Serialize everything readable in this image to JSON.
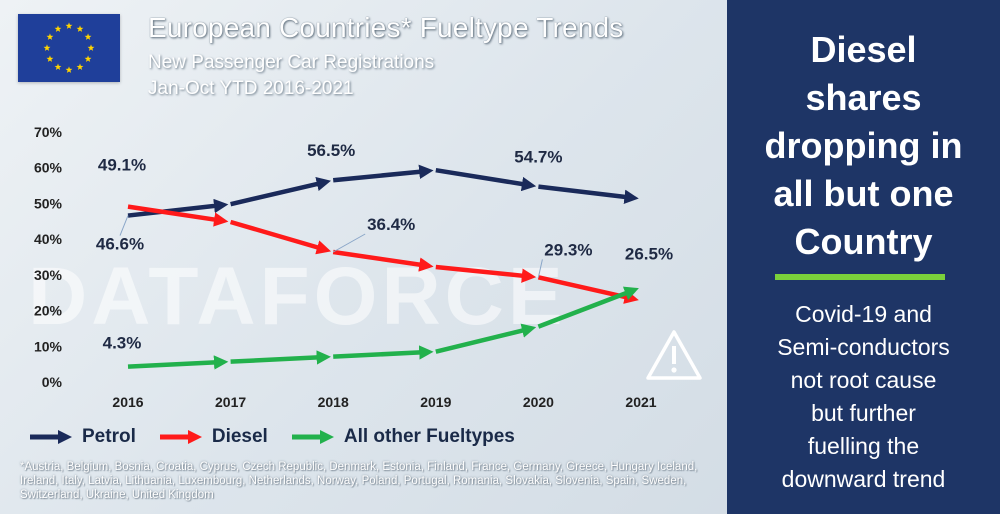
{
  "header": {
    "title": "European Countries* Fueltype Trends",
    "subtitle_line1": "New Passenger Car Registrations",
    "subtitle_line2": "Jan-Oct YTD 2016-2021"
  },
  "watermark": "DATAFORCE",
  "legend": {
    "items": [
      {
        "label": "Petrol",
        "color": "#1a2a5a"
      },
      {
        "label": "Diesel",
        "color": "#ff1a1a"
      },
      {
        "label": "All other Fueltypes",
        "color": "#22b14c"
      }
    ]
  },
  "footnote": "*Austria, Belgium, Bosnia, Croatia, Cyprus, Czech Republic, Denmark, Estonia,  Finland, France, Germany, Greece, Hungary Iceland, Ireland, Italy, Latvia, Lithuania, Luxembourg, Netherlands, Norway, Poland, Portugal, Romania, Slovakia, Slovenia, Spain, Sweden, Switzerland, Ukraine, United Kingdom",
  "panel": {
    "headline": [
      "Diesel",
      "shares",
      "dropping in",
      "all but one",
      "Country"
    ],
    "body": [
      "Covid-19 and",
      "Semi-conductors",
      "not root cause",
      "but further",
      "fuelling the",
      "downward trend"
    ],
    "accent_color": "#7bd13b",
    "background_color": "#1e3566"
  },
  "icons": {
    "flag": "eu-flag-icon",
    "warning": "warning-triangle-icon"
  },
  "chart_data": {
    "type": "line",
    "categories": [
      "2016",
      "2017",
      "2018",
      "2019",
      "2020",
      "2021"
    ],
    "ylim": [
      0,
      70
    ],
    "yticks": [
      "0%",
      "10%",
      "20%",
      "30%",
      "40%",
      "50%",
      "60%",
      "70%"
    ],
    "grid": false,
    "legend_position": "bottom-left",
    "series": [
      {
        "name": "Petrol",
        "color": "#1a2a5a",
        "values": [
          46.6,
          49.8,
          56.5,
          59.3,
          54.7,
          51.3
        ]
      },
      {
        "name": "Diesel",
        "color": "#ff1a1a",
        "values": [
          49.1,
          44.8,
          36.4,
          32.2,
          29.3,
          22.8
        ]
      },
      {
        "name": "All other Fueltypes",
        "color": "#22b14c",
        "values": [
          4.3,
          5.7,
          7.1,
          8.5,
          15.5,
          26.5
        ]
      }
    ],
    "data_labels": [
      {
        "text": "49.1%",
        "series": "Diesel",
        "category": "2016"
      },
      {
        "text": "46.6%",
        "series": "Petrol",
        "category": "2016"
      },
      {
        "text": "4.3%",
        "series": "All other Fueltypes",
        "category": "2016"
      },
      {
        "text": "56.5%",
        "series": "Petrol",
        "category": "2018"
      },
      {
        "text": "36.4%",
        "series": "Diesel",
        "category": "2018"
      },
      {
        "text": "54.7%",
        "series": "Petrol",
        "category": "2020"
      },
      {
        "text": "29.3%",
        "series": "Diesel",
        "category": "2020"
      },
      {
        "text": "26.5%",
        "series": "All other Fueltypes",
        "category": "2021"
      }
    ]
  }
}
